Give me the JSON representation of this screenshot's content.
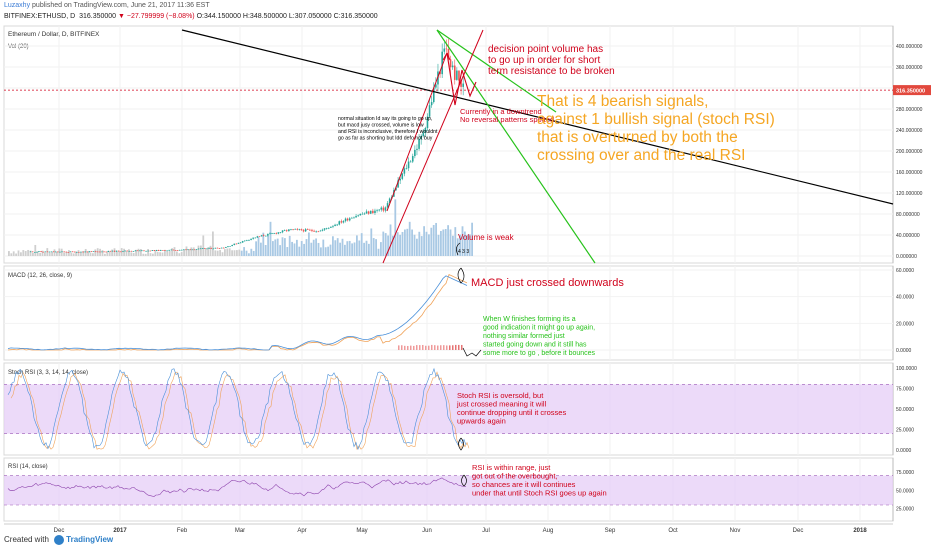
{
  "header": {
    "user": "Luzaxhy",
    "published": "published on TradingView.com, June 21, 2017 11:36 EST",
    "symbol": "BITFINEX:ETHUSD, D",
    "last": "316.350000",
    "change": "−27.799999 (−8.08%)",
    "open": "O:344.150000",
    "high": "H:348.500000",
    "low": "L:307.050000",
    "close": "C:316.350000"
  },
  "footer": {
    "created_with": "Created with",
    "brand": "TradingView"
  },
  "colors": {
    "candle_up": "#26a69a",
    "candle_down": "#ef5350",
    "red_annot": "#d0021b",
    "orange_annot": "#f5a623",
    "green_annot": "#27c21b",
    "stoch_band": "#e6cdf7",
    "macd_line": "#4a90d9",
    "signal_line": "#f0a35a"
  },
  "chart_data": [
    {
      "type": "line",
      "title": "Ethereum / Dollar, D, BITFINEX",
      "sublabel": "Vol (20)",
      "x_axis_labels": [
        "Dec",
        "2017",
        "Feb",
        "Mar",
        "Apr",
        "May",
        "Jun",
        "Jul",
        "Aug",
        "Sep",
        "Oct",
        "Nov",
        "Dec",
        "2018"
      ],
      "y_ticks": [
        "400.000000",
        "360.000000",
        "320.000000",
        "280.000000",
        "240.000000",
        "200.000000",
        "160.000000",
        "120.000000",
        "80.000000",
        "40.000000",
        "0.000000"
      ],
      "ylim": [
        0,
        420
      ],
      "last_price_label": "316.350000",
      "price_series_approx": [
        {
          "x": "2016-12-01",
          "y": 8.3
        },
        {
          "x": "2016-12-15",
          "y": 7.8
        },
        {
          "x": "2017-01-01",
          "y": 8.2
        },
        {
          "x": "2017-01-15",
          "y": 9.8
        },
        {
          "x": "2017-02-01",
          "y": 10.7
        },
        {
          "x": "2017-02-15",
          "y": 12.8
        },
        {
          "x": "2017-03-01",
          "y": 16
        },
        {
          "x": "2017-03-15",
          "y": 35
        },
        {
          "x": "2017-04-01",
          "y": 50
        },
        {
          "x": "2017-04-15",
          "y": 48
        },
        {
          "x": "2017-05-01",
          "y": 77
        },
        {
          "x": "2017-05-15",
          "y": 90
        },
        {
          "x": "2017-05-25",
          "y": 170
        },
        {
          "x": "2017-06-01",
          "y": 225
        },
        {
          "x": "2017-06-12",
          "y": 395
        },
        {
          "x": "2017-06-16",
          "y": 350
        },
        {
          "x": "2017-06-21",
          "y": 316
        }
      ],
      "annotations": [
        "decision point volume has\nto go up in order for short\nterm resistance to be broken",
        "Currently in a downtrend\nNo reversal patterns spotted",
        "normal situation Id say its going to go up,\nbut macd jusy crossed, volume is low\nand RSI is inconclusive, therefore I wouldnt\ngo as far as shorting but Idd defo not buy",
        "That is 4 bearish signals,\nagainst 1 bullish signal (stoch RSI)\nthat is overturned by both the\ncrossing over and the real RSI",
        "Volume is weak",
        "4 3 3"
      ]
    },
    {
      "type": "line",
      "title": "MACD (12, 26, close, 9)",
      "y_ticks": [
        "60.0000",
        "40.0000",
        "20.0000",
        "0.0000"
      ],
      "ylim": [
        -5,
        62
      ],
      "annotations": [
        "MACD just crossed downwards",
        "When W finishes forming its a\ngood indication it might go up again,\nnothing similar formed just\nstarted going down and it still has\nsome more to go  , before it bounces"
      ]
    },
    {
      "type": "line",
      "title": "Stoch RSI (3, 3, 14, 14, close)",
      "y_ticks": [
        "100.0000",
        "75.0000",
        "50.0000",
        "25.0000",
        "0.0000"
      ],
      "ylim": [
        0,
        100
      ],
      "band": [
        20,
        80
      ],
      "annotations": [
        "Stoch RSI is oversold, but\njust crossed meaning it will\n continue dropping until it crosses\n upwards again"
      ]
    },
    {
      "type": "line",
      "title": "RSI (14, close)",
      "y_ticks": [
        "75.0000",
        "50.0000",
        "25.0000"
      ],
      "ylim": [
        15,
        90
      ],
      "band": [
        30,
        70
      ],
      "annotations": [
        "RSI is within range, just\ngot out of the overbought,\n so chances are it will continues\nunder that until Stoch RSI goes up again"
      ]
    }
  ]
}
